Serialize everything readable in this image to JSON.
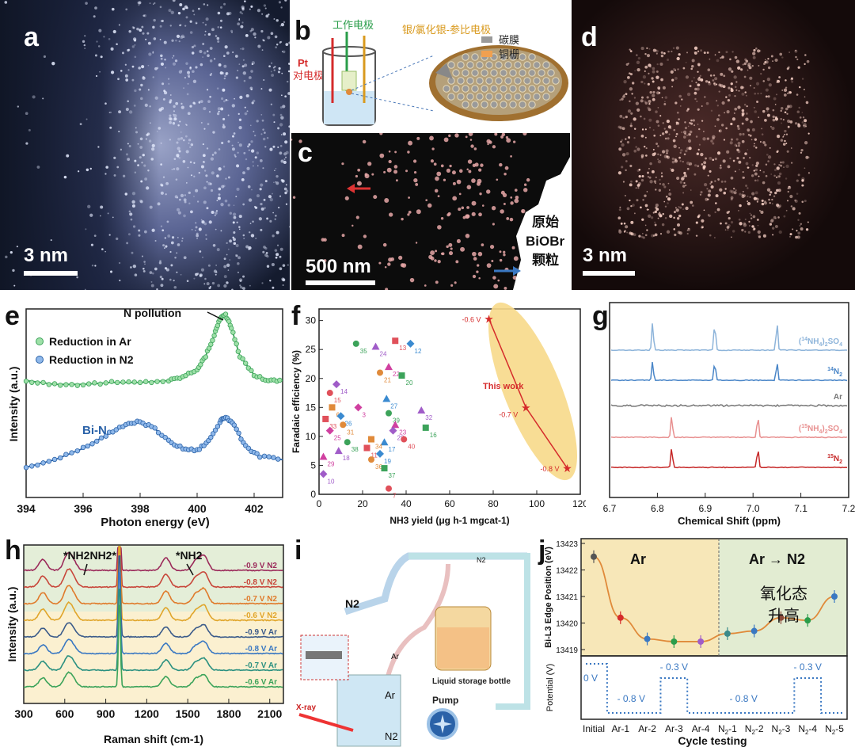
{
  "labels": {
    "a": "a",
    "b": "b",
    "c": "c",
    "d": "d",
    "e": "e",
    "f": "f",
    "g": "g",
    "h": "h",
    "i": "i",
    "j": "j"
  },
  "micro": {
    "a_scale": "3 nm",
    "c_scale": "500 nm",
    "d_scale": "3 nm",
    "c_particle": [
      "原始",
      "BiOBr",
      "颗粒"
    ]
  },
  "cell_b": {
    "pt": "Pt",
    "counter": "对电极",
    "work": "工作电极",
    "ref": "银/氯化银-参比电极",
    "carbon": "碳膜",
    "grid": "铜栅"
  },
  "colors": {
    "green": "#4caf6a",
    "blue": "#3a78c2",
    "red": "#c62828",
    "orange": "#e08a3a",
    "purple": "#a05cc8",
    "yellow": "#f5d98b"
  },
  "chart_data": [
    {
      "panel": "e",
      "type": "line",
      "xlabel": "Photon energy (eV)",
      "ylabel": "Intensity (a.u.)",
      "xlim": [
        394,
        403
      ],
      "xticks": [
        "394",
        "396",
        "398",
        "400",
        "402"
      ],
      "legend": [
        "Reduction in Ar",
        "Reduction in N2"
      ],
      "annotations": {
        "top": "N pollution",
        "bottom": "Bi-N"
      },
      "series": [
        {
          "name": "Reduction in Ar",
          "x": [
            394,
            395,
            396,
            397,
            398,
            399,
            399.5,
            400,
            400.3,
            400.6,
            400.8,
            401,
            401.2,
            401.5,
            402,
            402.5,
            403
          ],
          "y": [
            0.62,
            0.6,
            0.6,
            0.61,
            0.61,
            0.62,
            0.64,
            0.68,
            0.75,
            0.86,
            0.95,
            0.97,
            0.9,
            0.75,
            0.65,
            0.62,
            0.62
          ]
        },
        {
          "name": "Reduction in N2",
          "x": [
            394,
            395,
            396,
            396.8,
            397.4,
            397.9,
            398.4,
            399,
            399.5,
            400,
            400.4,
            400.8,
            401,
            401.3,
            401.7,
            402.2,
            403
          ],
          "y": [
            0.16,
            0.2,
            0.26,
            0.33,
            0.38,
            0.4,
            0.38,
            0.3,
            0.26,
            0.25,
            0.3,
            0.4,
            0.43,
            0.38,
            0.27,
            0.22,
            0.2
          ]
        }
      ]
    },
    {
      "panel": "f",
      "type": "scatter",
      "xlabel": "NH3 yield (μg h-1 mgcat-1)",
      "ylabel": "Faradaic efficiency (%)",
      "xlim": [
        0,
        120
      ],
      "ylim": [
        0,
        32
      ],
      "xticks": [
        "0",
        "20",
        "40",
        "60",
        "80",
        "100",
        "120"
      ],
      "yticks": [
        "0",
        "5",
        "10",
        "15",
        "20",
        "25",
        "30"
      ],
      "this_work": {
        "label": "This work",
        "points": [
          {
            "x": 78,
            "y": 30.3,
            "label": "-0.6 V"
          },
          {
            "x": 95,
            "y": 15,
            "label": "-0.7 V"
          },
          {
            "x": 114,
            "y": 4.5,
            "label": "-0.8 V"
          }
        ]
      },
      "refs": [
        {
          "n": "35",
          "x": 17,
          "y": 26
        },
        {
          "n": "24",
          "x": 26,
          "y": 25.5
        },
        {
          "n": "13",
          "x": 35,
          "y": 26.5
        },
        {
          "n": "12",
          "x": 42,
          "y": 26
        },
        {
          "n": "21",
          "x": 28,
          "y": 21
        },
        {
          "n": "22",
          "x": 32,
          "y": 22
        },
        {
          "n": "20",
          "x": 38,
          "y": 20.5
        },
        {
          "n": "14",
          "x": 8,
          "y": 19
        },
        {
          "n": "15",
          "x": 5,
          "y": 17.5
        },
        {
          "n": "27",
          "x": 31,
          "y": 16.5
        },
        {
          "n": "6",
          "x": 6,
          "y": 15
        },
        {
          "n": "3",
          "x": 18,
          "y": 15
        },
        {
          "n": "39",
          "x": 32,
          "y": 14
        },
        {
          "n": "32",
          "x": 47,
          "y": 14.5
        },
        {
          "n": "33",
          "x": 3,
          "y": 13
        },
        {
          "n": "26",
          "x": 10,
          "y": 13.5
        },
        {
          "n": "31",
          "x": 11,
          "y": 12
        },
        {
          "n": "23",
          "x": 35,
          "y": 12
        },
        {
          "n": "16",
          "x": 49,
          "y": 11.5
        },
        {
          "n": "28",
          "x": 34,
          "y": 11
        },
        {
          "n": "40",
          "x": 39,
          "y": 9.5
        },
        {
          "n": "17",
          "x": 30,
          "y": 9
        },
        {
          "n": "34",
          "x": 24,
          "y": 9.5
        },
        {
          "n": "25",
          "x": 5,
          "y": 11
        },
        {
          "n": "38",
          "x": 13,
          "y": 9
        },
        {
          "n": "18",
          "x": 9,
          "y": 7.5
        },
        {
          "n": "11",
          "x": 22,
          "y": 8
        },
        {
          "n": "19",
          "x": 28,
          "y": 7
        },
        {
          "n": "36",
          "x": 24,
          "y": 6
        },
        {
          "n": "29",
          "x": 2,
          "y": 6.5
        },
        {
          "n": "37",
          "x": 30,
          "y": 4.5
        },
        {
          "n": "10",
          "x": 2,
          "y": 3.5
        },
        {
          "n": "7",
          "x": 32,
          "y": 1
        }
      ]
    },
    {
      "panel": "g",
      "type": "line",
      "xlabel": "Chemical Shift (ppm)",
      "xlim": [
        6.7,
        7.2
      ],
      "xticks": [
        "6.7",
        "6.8",
        "6.9",
        "7.0",
        "7.1",
        "7.2"
      ],
      "series": [
        {
          "name": "(14NH4)2SO4",
          "peaks": [
            6.79,
            6.92,
            7.05
          ]
        },
        {
          "name": "14N2",
          "peaks": [
            6.79,
            6.92,
            7.05
          ]
        },
        {
          "name": "Ar",
          "peaks": []
        },
        {
          "name": "(15NH4)2SO4",
          "peaks": [
            6.83,
            7.01
          ]
        },
        {
          "name": "15N2",
          "peaks": [
            6.83,
            7.01
          ]
        }
      ]
    },
    {
      "panel": "h",
      "type": "line",
      "xlabel": "Raman shift (cm-1)",
      "ylabel": "Intensity (a.u.)",
      "xlim": [
        300,
        2200
      ],
      "xticks": [
        "300",
        "600",
        "900",
        "1200",
        "1500",
        "1800",
        "2100"
      ],
      "annotations": [
        "*NH2NH2*",
        "*NH2"
      ],
      "series": [
        {
          "name": "-0.9 V N2"
        },
        {
          "name": "-0.8 V N2"
        },
        {
          "name": "-0.7 V N2"
        },
        {
          "name": "-0.6 V N2"
        },
        {
          "name": "-0.9 V Ar"
        },
        {
          "name": "-0.8 V Ar"
        },
        {
          "name": "-0.7 V Ar"
        },
        {
          "name": "-0.6 V Ar"
        }
      ]
    },
    {
      "panel": "j",
      "type": "line",
      "xlabel": "Cycle testing",
      "ylabel": "Bi-L3 Edge Position (eV)",
      "ylabel2": "Potential (V)",
      "categories": [
        "Initial",
        "Ar-1",
        "Ar-2",
        "Ar-3",
        "Ar-4",
        "N2-1",
        "N2-2",
        "N2-3",
        "N2-4",
        "N2-5"
      ],
      "values": [
        13422.5,
        13420.2,
        13419.4,
        13419.3,
        13419.3,
        13419.6,
        13419.7,
        13420.2,
        13420.1,
        13421.0
      ],
      "ylim": [
        13419,
        13423
      ],
      "yticks": [
        "13419",
        "13420",
        "13421",
        "13422",
        "13423"
      ],
      "regions": [
        "Ar",
        "Ar → N2"
      ],
      "annotation": [
        "氧化态",
        "升高"
      ],
      "potentials": [
        "0 V",
        "- 0.8 V",
        "- 0.3 V",
        "- 0.8 V",
        "- 0.3 V"
      ]
    }
  ],
  "scheme_i": {
    "n2_in": "N2",
    "n2_out": "N2",
    "n2_box": "N2",
    "ar_line": "Ar",
    "ar_box": "Ar",
    "bottle": "Liquid storage bottle",
    "pump": "Pump",
    "xray": "X-ray"
  }
}
